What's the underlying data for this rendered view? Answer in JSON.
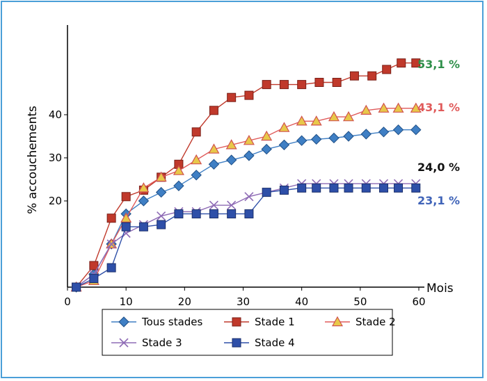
{
  "chart_data": {
    "type": "line",
    "title": "",
    "xlabel": "Mois",
    "ylabel": "% accouchements",
    "xlim": [
      0,
      60
    ],
    "ylim": [
      0,
      60
    ],
    "x_ticks": [
      0,
      10,
      20,
      30,
      40,
      50,
      60
    ],
    "y_ticks": [
      20,
      30,
      40
    ],
    "grid": false,
    "legend_position": "bottom",
    "series": [
      {
        "name": "Tous stades",
        "color": "#3f7fc4",
        "marker": "diamond",
        "points": [
          [
            1.5,
            0
          ],
          [
            4.5,
            3
          ],
          [
            7.5,
            10
          ],
          [
            10,
            17
          ],
          [
            13,
            20
          ],
          [
            16,
            22
          ],
          [
            19,
            23.5
          ],
          [
            22,
            26
          ],
          [
            25,
            28.5
          ],
          [
            28,
            29.5
          ],
          [
            31,
            30.5
          ],
          [
            34,
            32
          ],
          [
            37,
            33
          ],
          [
            40,
            34
          ],
          [
            42.5,
            34.3
          ],
          [
            45.5,
            34.6
          ],
          [
            48,
            35
          ],
          [
            51,
            35.5
          ],
          [
            54,
            36
          ],
          [
            56.5,
            36.5
          ],
          [
            59.5,
            36.5
          ]
        ]
      },
      {
        "name": "Stade 1",
        "color": "#c0392b",
        "marker": "square",
        "points": [
          [
            1.5,
            0
          ],
          [
            4.5,
            5
          ],
          [
            7.5,
            16
          ],
          [
            10,
            21
          ],
          [
            13,
            22.5
          ],
          [
            16,
            25.5
          ],
          [
            19,
            28.5
          ],
          [
            22,
            36
          ],
          [
            25,
            41
          ],
          [
            28,
            44
          ],
          [
            31,
            44.5
          ],
          [
            34,
            47
          ],
          [
            37,
            47
          ],
          [
            40,
            47
          ],
          [
            43,
            47.5
          ],
          [
            46,
            47.5
          ],
          [
            49,
            49
          ],
          [
            52,
            49
          ],
          [
            54.5,
            50.5
          ],
          [
            57,
            52
          ],
          [
            59.5,
            52
          ]
        ]
      },
      {
        "name": "Stade 2",
        "color": "#e05a5a",
        "marker": "triangle",
        "points": [
          [
            1.5,
            0
          ],
          [
            4.5,
            1.5
          ],
          [
            7.5,
            10
          ],
          [
            10,
            16
          ],
          [
            13,
            23
          ],
          [
            16,
            25.5
          ],
          [
            19,
            27
          ],
          [
            22,
            29.5
          ],
          [
            25,
            32
          ],
          [
            28,
            33
          ],
          [
            31,
            34
          ],
          [
            34,
            35
          ],
          [
            37,
            37
          ],
          [
            40,
            38.5
          ],
          [
            42.5,
            38.5
          ],
          [
            45.5,
            39.5
          ],
          [
            48,
            39.5
          ],
          [
            51,
            41
          ],
          [
            54,
            41.5
          ],
          [
            56.5,
            41.5
          ],
          [
            59.5,
            41.5
          ]
        ]
      },
      {
        "name": "Stade 3",
        "color": "#8e6bb5",
        "marker": "x",
        "points": [
          [
            1.5,
            0
          ],
          [
            4.5,
            3
          ],
          [
            7.5,
            10
          ],
          [
            10,
            12.5
          ],
          [
            13,
            14.5
          ],
          [
            16,
            16.5
          ],
          [
            19,
            17.5
          ],
          [
            22,
            17.5
          ],
          [
            25,
            19
          ],
          [
            28,
            19
          ],
          [
            31,
            21
          ],
          [
            34,
            22
          ],
          [
            37,
            23
          ],
          [
            40,
            24
          ],
          [
            42.5,
            24
          ],
          [
            45.5,
            24
          ],
          [
            48,
            24
          ],
          [
            51,
            24
          ],
          [
            54,
            24
          ],
          [
            56.5,
            24
          ],
          [
            59.5,
            24
          ]
        ]
      },
      {
        "name": "Stade 4",
        "color": "#2e4fa8",
        "marker": "square",
        "points": [
          [
            1.5,
            0
          ],
          [
            4.5,
            2
          ],
          [
            7.5,
            4.5
          ],
          [
            10,
            14
          ],
          [
            13,
            14
          ],
          [
            16,
            14.5
          ],
          [
            19,
            17
          ],
          [
            22,
            17
          ],
          [
            25,
            17
          ],
          [
            28,
            17
          ],
          [
            31,
            17
          ],
          [
            34,
            22
          ],
          [
            37,
            22.5
          ],
          [
            40,
            23
          ],
          [
            42.5,
            23
          ],
          [
            45.5,
            23
          ],
          [
            48,
            23
          ],
          [
            51,
            23
          ],
          [
            54,
            23
          ],
          [
            56.5,
            23
          ],
          [
            59.5,
            23
          ]
        ]
      }
    ],
    "annotations": [
      {
        "text": "53,1 %",
        "color": "#2f8f4a",
        "series": "Stade 1"
      },
      {
        "text": "43,1 %",
        "color": "#e05a5a",
        "series": "Stade 2"
      },
      {
        "text": "24,0 %",
        "color": "#111111",
        "series": "Stade 3"
      },
      {
        "text": "23,1 %",
        "color": "#3f63b8",
        "series": "Stade 4"
      }
    ]
  }
}
